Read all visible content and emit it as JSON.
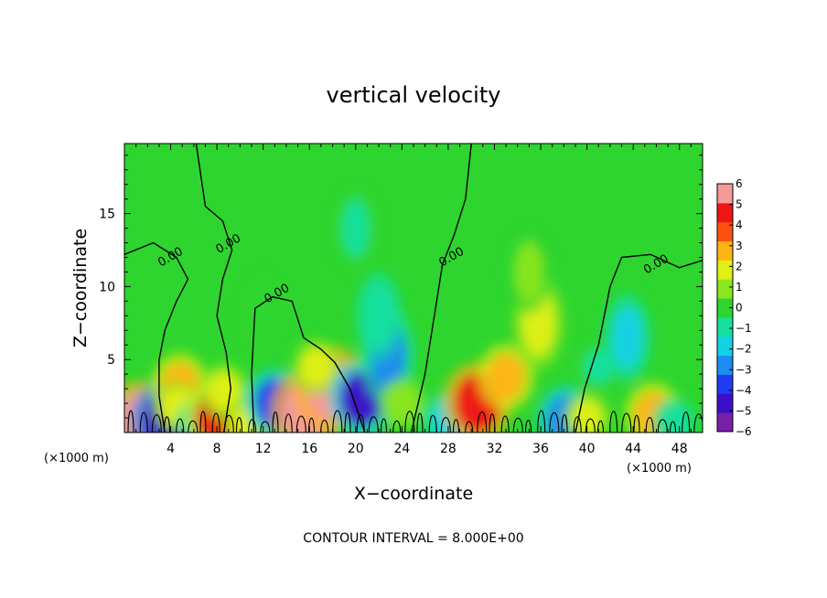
{
  "chart_data": {
    "type": "heatmap",
    "title": "vertical velocity",
    "xlabel": "X−coordinate",
    "ylabel": "Z−coordinate",
    "x_units": "(×1000 m)",
    "y_units": "(×1000 m)",
    "footer": "CONTOUR INTERVAL = 8.000E+00",
    "xlim": [
      0,
      50
    ],
    "ylim": [
      0,
      19.8
    ],
    "x_ticks": [
      4,
      8,
      12,
      16,
      20,
      24,
      28,
      32,
      36,
      40,
      44,
      48
    ],
    "y_ticks": [
      5,
      10,
      15
    ],
    "zero_contour_label": "0.00",
    "colorbar": {
      "min": -6,
      "max": 6,
      "tick_labels": [
        "6",
        "5",
        "4",
        "3",
        "2",
        "1",
        "0",
        "−1",
        "−2",
        "−3",
        "−4",
        "−5",
        "−6"
      ],
      "colors": [
        "#7a1fa8",
        "#3c0fc8",
        "#1f3cf0",
        "#1e8cf0",
        "#14d2e6",
        "#16e0a0",
        "#2ed52e",
        "#8ae61e",
        "#e0f014",
        "#ffb414",
        "#ff5014",
        "#f01414",
        "#f59a9a"
      ]
    },
    "features": [
      {
        "x": 1.2,
        "z": 0.6,
        "w": 5.5
      },
      {
        "x": 3.5,
        "z": 0.8,
        "w": -4.8
      },
      {
        "x": 4.8,
        "z": 3.2,
        "w": 3.0
      },
      {
        "x": 4.5,
        "z": 1.7,
        "w": 1.6
      },
      {
        "x": 6.5,
        "z": 0.6,
        "w": -1.5
      },
      {
        "x": 8.0,
        "z": 1.0,
        "w": 4.3
      },
      {
        "x": 8.6,
        "z": 2.8,
        "w": 2.0
      },
      {
        "x": 10.5,
        "z": 0.5,
        "w": 1.5
      },
      {
        "x": 13.0,
        "z": 2.0,
        "w": -3.4
      },
      {
        "x": 15.6,
        "z": 1.4,
        "w": 5.2
      },
      {
        "x": 17.8,
        "z": 3.0,
        "w": 5.6
      },
      {
        "x": 16.6,
        "z": 4.5,
        "w": 1.8
      },
      {
        "x": 20.5,
        "z": 2.3,
        "w": -4.3
      },
      {
        "x": 22.8,
        "z": 5.3,
        "w": -2.7
      },
      {
        "x": 22.0,
        "z": 8.0,
        "w": -1.3
      },
      {
        "x": 24.0,
        "z": 2.0,
        "w": 1.2
      },
      {
        "x": 28.0,
        "z": 0.8,
        "w": -2.2
      },
      {
        "x": 30.5,
        "z": 2.0,
        "w": 5.0
      },
      {
        "x": 33.0,
        "z": 3.8,
        "w": 3.1
      },
      {
        "x": 35.8,
        "z": 7.5,
        "w": 2.2
      },
      {
        "x": 35.0,
        "z": 11.0,
        "w": 0.8
      },
      {
        "x": 38.2,
        "z": 0.9,
        "w": -3.2
      },
      {
        "x": 40.0,
        "z": 1.0,
        "w": 1.5
      },
      {
        "x": 41.0,
        "z": 4.5,
        "w": -0.9
      },
      {
        "x": 43.5,
        "z": 6.5,
        "w": -1.5
      },
      {
        "x": 45.7,
        "z": 1.2,
        "w": 3.0
      },
      {
        "x": 47.5,
        "z": 0.7,
        "w": -1.0
      },
      {
        "x": 20.0,
        "z": 14.0,
        "w": -0.5
      },
      {
        "x": 12.0,
        "z": 8.0,
        "w": 0.4
      }
    ],
    "contours": [
      {
        "label_x": 4.0,
        "label_z": 12.0,
        "points": [
          [
            0,
            12.2
          ],
          [
            2.5,
            13.0
          ],
          [
            4.5,
            12.0
          ],
          [
            5.5,
            10.5
          ],
          [
            4.5,
            9.0
          ],
          [
            3.5,
            7.0
          ],
          [
            3.0,
            5.0
          ],
          [
            3.0,
            2.5
          ],
          [
            3.5,
            0.0
          ]
        ]
      },
      {
        "label_x": 9.0,
        "label_z": 12.9,
        "points": [
          [
            6.2,
            19.8
          ],
          [
            7.0,
            15.5
          ],
          [
            8.5,
            14.5
          ],
          [
            9.3,
            12.5
          ],
          [
            8.5,
            10.5
          ],
          [
            8.0,
            8.0
          ],
          [
            8.8,
            5.5
          ],
          [
            9.2,
            3.0
          ],
          [
            8.6,
            0.0
          ]
        ]
      },
      {
        "label_x": 13.2,
        "label_z": 9.5,
        "points": [
          [
            11.2,
            0.0
          ],
          [
            11.0,
            4.0
          ],
          [
            11.3,
            8.5
          ],
          [
            12.8,
            9.3
          ],
          [
            14.5,
            9.0
          ],
          [
            15.5,
            6.5
          ],
          [
            17.0,
            5.7
          ],
          [
            18.2,
            4.8
          ],
          [
            19.5,
            3.0
          ],
          [
            20.8,
            0.0
          ]
        ]
      },
      {
        "label_x": 28.3,
        "label_z": 12.0,
        "points": [
          [
            30.0,
            19.8
          ],
          [
            29.5,
            16.0
          ],
          [
            28.5,
            13.5
          ],
          [
            27.5,
            11.5
          ],
          [
            26.8,
            8.0
          ],
          [
            26.0,
            4.0
          ],
          [
            24.8,
            0.0
          ]
        ]
      },
      {
        "label_x": 46.0,
        "label_z": 11.5,
        "points": [
          [
            50.0,
            11.8
          ],
          [
            48.0,
            11.3
          ],
          [
            45.5,
            12.2
          ],
          [
            43.0,
            12.0
          ],
          [
            42.0,
            10.0
          ],
          [
            41.0,
            6.0
          ],
          [
            39.8,
            3.0
          ],
          [
            39.0,
            0.0
          ]
        ]
      }
    ],
    "wiggle_band_z": 2.0
  }
}
